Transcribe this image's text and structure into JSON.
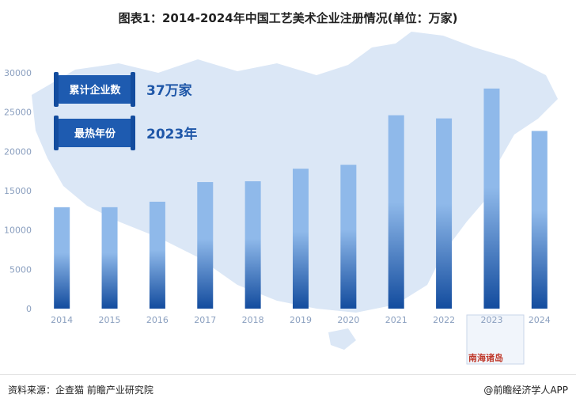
{
  "title": "图表1：2014-2024年中国工艺美术企业注册情况(单位：万家)",
  "badges": [
    {
      "label": "累计企业数",
      "value": "37万家"
    },
    {
      "label": "最热年份",
      "value": "2023年"
    }
  ],
  "map_label": "南海诸岛",
  "footer": {
    "source": "资料来源：企查猫 前瞻产业研究院",
    "brand": "@前瞻经济学人APP"
  },
  "colors": {
    "bar_top": "#8fb9ea",
    "bar_bottom": "#134c9e",
    "map": "#dbe7f6",
    "badge": "#1e5bb0"
  },
  "chart_data": {
    "type": "bar",
    "categories": [
      "2014",
      "2015",
      "2016",
      "2017",
      "2018",
      "2019",
      "2020",
      "2021",
      "2022",
      "2023",
      "2024"
    ],
    "values": [
      12900,
      12900,
      13600,
      16100,
      16200,
      17800,
      18300,
      24600,
      24200,
      28000,
      22600
    ],
    "ylim": [
      0,
      30000
    ],
    "yticks": [
      0,
      5000,
      10000,
      15000,
      20000,
      25000,
      30000
    ],
    "xlabel": "",
    "ylabel": "",
    "grid": false
  }
}
